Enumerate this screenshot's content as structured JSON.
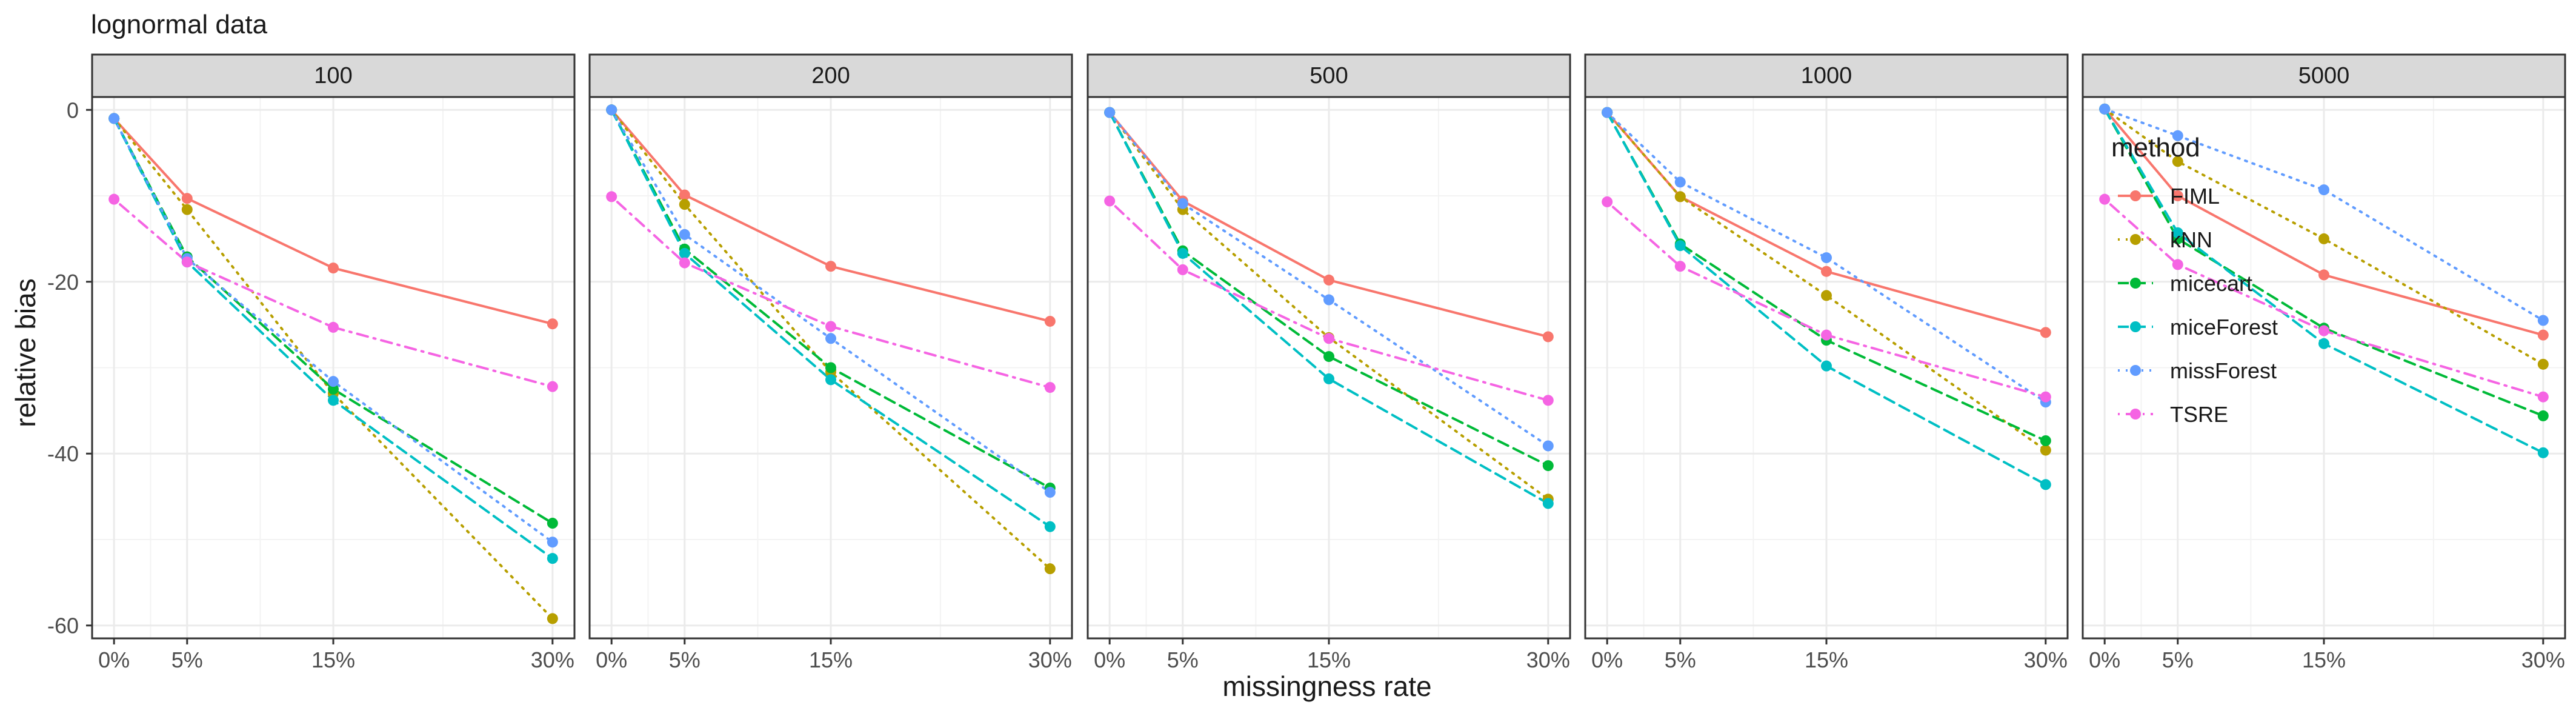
{
  "chart_data": {
    "type": "line",
    "title": "lognormal data",
    "xlabel": "missingness rate",
    "ylabel": "relative bias",
    "x": [
      0,
      5,
      15,
      30
    ],
    "x_tick_labels": [
      "0%",
      "5%",
      "15%",
      "30%"
    ],
    "y_ticks": [
      0,
      -20,
      -40,
      -60
    ],
    "ylim": [
      -61.5,
      1.5
    ],
    "grid": true,
    "legend_title": "method",
    "legend_placement": "inside-top-right of last panel",
    "panels": [
      {
        "label": "100",
        "series": [
          {
            "name": "FIML",
            "values": [
              -1.0,
              -10.3,
              -18.4,
              -24.9
            ]
          },
          {
            "name": "kNN",
            "values": [
              -1.0,
              -11.6,
              -33.0,
              -59.2
            ]
          },
          {
            "name": "micecart",
            "values": [
              -1.0,
              -17.1,
              -32.5,
              -48.1
            ]
          },
          {
            "name": "miceForest",
            "values": [
              -1.0,
              -17.7,
              -33.8,
              -52.2
            ]
          },
          {
            "name": "missForest",
            "values": [
              -1.0,
              -17.3,
              -31.6,
              -50.3
            ]
          },
          {
            "name": "TSRE",
            "values": [
              -10.4,
              -17.7,
              -25.3,
              -32.2
            ]
          }
        ]
      },
      {
        "label": "200",
        "series": [
          {
            "name": "FIML",
            "values": [
              0.0,
              -9.9,
              -18.2,
              -24.6
            ]
          },
          {
            "name": "kNN",
            "values": [
              0.0,
              -11.0,
              -30.5,
              -53.4
            ]
          },
          {
            "name": "micecart",
            "values": [
              0.0,
              -16.2,
              -30.0,
              -44.0
            ]
          },
          {
            "name": "miceForest",
            "values": [
              0.0,
              -16.7,
              -31.4,
              -48.5
            ]
          },
          {
            "name": "missForest",
            "values": [
              0.0,
              -14.5,
              -26.6,
              -44.5
            ]
          },
          {
            "name": "TSRE",
            "values": [
              -10.1,
              -17.8,
              -25.2,
              -32.3
            ]
          }
        ]
      },
      {
        "label": "500",
        "series": [
          {
            "name": "FIML",
            "values": [
              -0.3,
              -10.6,
              -19.8,
              -26.4
            ]
          },
          {
            "name": "kNN",
            "values": [
              -0.3,
              -11.6,
              -26.5,
              -45.3
            ]
          },
          {
            "name": "micecart",
            "values": [
              -0.3,
              -16.4,
              -28.7,
              -41.4
            ]
          },
          {
            "name": "miceForest",
            "values": [
              -0.3,
              -16.7,
              -31.3,
              -45.8
            ]
          },
          {
            "name": "missForest",
            "values": [
              -0.3,
              -10.9,
              -22.1,
              -39.1
            ]
          },
          {
            "name": "TSRE",
            "values": [
              -10.6,
              -18.6,
              -26.6,
              -33.8
            ]
          }
        ]
      },
      {
        "label": "1000",
        "series": [
          {
            "name": "FIML",
            "values": [
              -0.3,
              -10.1,
              -18.8,
              -25.9
            ]
          },
          {
            "name": "kNN",
            "values": [
              -0.3,
              -10.1,
              -21.6,
              -39.6
            ]
          },
          {
            "name": "micecart",
            "values": [
              -0.3,
              -15.6,
              -26.8,
              -38.5
            ]
          },
          {
            "name": "miceForest",
            "values": [
              -0.3,
              -15.8,
              -29.8,
              -43.6
            ]
          },
          {
            "name": "missForest",
            "values": [
              -0.3,
              -8.4,
              -17.2,
              -34.0
            ]
          },
          {
            "name": "TSRE",
            "values": [
              -10.7,
              -18.2,
              -26.2,
              -33.4
            ]
          }
        ]
      },
      {
        "label": "5000",
        "series": [
          {
            "name": "FIML",
            "values": [
              0.1,
              -10.0,
              -19.2,
              -26.2
            ]
          },
          {
            "name": "kNN",
            "values": [
              0.1,
              -6.0,
              -15.0,
              -29.6
            ]
          },
          {
            "name": "micecart",
            "values": [
              0.1,
              -15.0,
              -25.4,
              -35.6
            ]
          },
          {
            "name": "miceForest",
            "values": [
              0.1,
              -14.3,
              -27.2,
              -39.9
            ]
          },
          {
            "name": "missForest",
            "values": [
              0.1,
              -3.0,
              -9.3,
              -24.5
            ]
          },
          {
            "name": "TSRE",
            "values": [
              -10.4,
              -18.0,
              -25.7,
              -33.4
            ]
          }
        ]
      }
    ]
  },
  "colors": {
    "FIML": "#F8766D",
    "kNN": "#B79F00",
    "micecart": "#00BA38",
    "miceForest": "#00BFC4",
    "missForest": "#619CFF",
    "TSRE": "#F564E3",
    "strip_fill": "#D9D9D9",
    "panel_border": "#333333",
    "grid_major": "#EBEBEB",
    "text": "#1A1A1A",
    "tick_text": "#4D4D4D"
  },
  "line_styles": {
    "FIML": "solid",
    "kNN": "dotted",
    "micecart": "dashed",
    "miceForest": "dashed",
    "missForest": "dotted",
    "TSRE": "dashdot"
  }
}
